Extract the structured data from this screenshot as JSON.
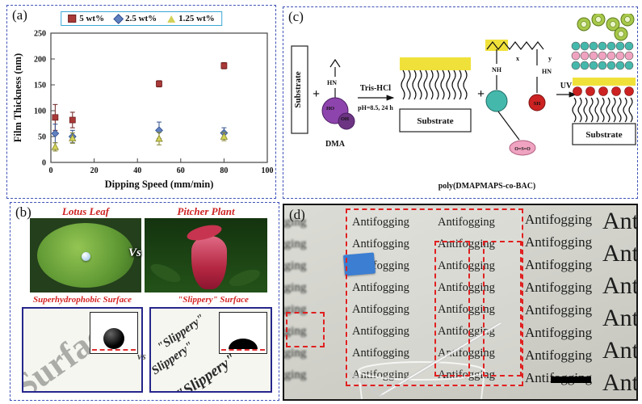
{
  "panels": {
    "a": "(a)",
    "b": "(b)",
    "c": "(c)",
    "d": "(d)"
  },
  "chart_data": {
    "type": "scatter",
    "title": "",
    "xlabel": "Dipping Speed (mm/min)",
    "ylabel": "Film Thickness (nm)",
    "xlim": [
      0,
      100
    ],
    "ylim": [
      0,
      250
    ],
    "xticks": [
      0,
      20,
      40,
      60,
      80,
      100
    ],
    "yticks": [
      0,
      50,
      100,
      150,
      200,
      250
    ],
    "grid": false,
    "legend_position": "top",
    "series": [
      {
        "name": "5 wt%",
        "marker": "square",
        "color": "#a93a38",
        "edge": "#6e1f1f",
        "x": [
          2,
          10,
          50,
          80
        ],
        "y": [
          87,
          82,
          152,
          187
        ],
        "yerr": [
          25,
          15,
          6,
          6
        ]
      },
      {
        "name": "2.5 wt%",
        "marker": "diamond",
        "color": "#6080c0",
        "edge": "#31508f",
        "x": [
          2,
          10,
          50,
          80
        ],
        "y": [
          56,
          50,
          62,
          57
        ],
        "yerr": [
          18,
          12,
          16,
          10
        ]
      },
      {
        "name": "1.25 wt%",
        "marker": "triangle",
        "color": "#d2d25a",
        "edge": "#84842a",
        "x": [
          2,
          10,
          50,
          80
        ],
        "y": [
          30,
          47,
          46,
          50
        ],
        "yerr": [
          8,
          10,
          12,
          8
        ]
      }
    ]
  },
  "panel_b": {
    "lotus_title": "Lotus Leaf",
    "pitcher_title": "Pitcher Plant",
    "vs": "Vs",
    "cap_left": "Superhydrophobic Surface",
    "cap_right": "\"Slippery\" Surface",
    "slippery": "\"Slippery\"",
    "surface_word": "Surface",
    "vs_small": "vs"
  },
  "panel_c": {
    "substrate_left": "Substrate",
    "plus1": "+",
    "hn": "HN",
    "ho": "HO",
    "oh": "OH",
    "dma": "DMA",
    "tris": "Tris-HCl",
    "ph": "pH=8.5, 24 h",
    "substrate_mid": "Substrate",
    "plus2": "+",
    "x_sub": "x",
    "y_sub": "y",
    "nh": "NH",
    "hn2": "HN",
    "sh": "SH",
    "oso": "O=S=O",
    "uv": "UV",
    "substrate_right": "Substrate",
    "bottom": "poly(DMAPMAPS-co-BAC)",
    "colors": {
      "yellow": "#f0e13a",
      "teal": "#45b8ac",
      "pink": "#f0a3c0",
      "red": "#cc2222",
      "purple": "#8e44ad",
      "green": "#a8c84a"
    }
  },
  "panel_d": {
    "word": "Antifogging"
  }
}
